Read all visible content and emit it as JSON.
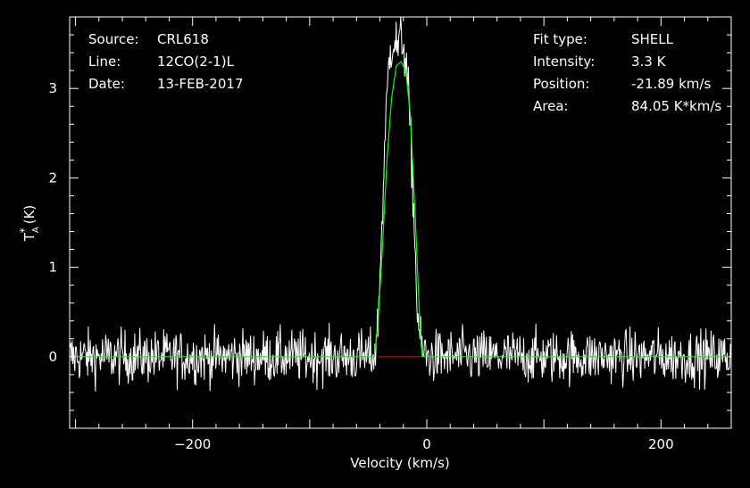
{
  "annotations_left": [
    {
      "key": "Source:",
      "value": "CRL618"
    },
    {
      "key": "Line:",
      "value": "12CO(2-1)L"
    },
    {
      "key": "Date:",
      "value": "13-FEB-2017"
    }
  ],
  "annotations_right": [
    {
      "key": "Fit type:",
      "value": "SHELL"
    },
    {
      "key": "Intensity:",
      "value": "3.3 K"
    },
    {
      "key": "Position:",
      "value": "-21.89 km/s"
    },
    {
      "key": "Area:",
      "value": "84.05 K*km/s"
    }
  ],
  "colors": {
    "background": "#000000",
    "spectrum": "#ffffff",
    "fit": "#00ff00",
    "baseline": "#ff0000"
  },
  "chart_data": {
    "type": "line",
    "xlabel": "Velocity (km/s)",
    "ylabel": "T_A^* (K)",
    "xlim": [
      -305,
      260
    ],
    "ylim": [
      -0.8,
      3.8
    ],
    "xticks": [
      -200,
      0,
      200
    ],
    "xtick_labels": [
      "−200",
      "0",
      "200"
    ],
    "yticks": [
      0,
      1,
      2,
      3
    ],
    "ytick_labels": [
      "0",
      "1",
      "2",
      "3"
    ],
    "grid": false,
    "series": [
      {
        "role": "spectrum",
        "noise_rms": 0.15,
        "x": [
          -300,
          -290,
          -280,
          -270,
          -260,
          -250,
          -240,
          -230,
          -220,
          -210,
          -200,
          -190,
          -180,
          -170,
          -160,
          -150,
          -140,
          -130,
          -120,
          -110,
          -100,
          -90,
          -80,
          -70,
          -60,
          -50,
          -45,
          -42,
          -40,
          -38,
          -36,
          -34,
          -32,
          -30,
          -28,
          -26,
          -24,
          -22,
          -20,
          -18,
          -16,
          -14,
          -12,
          -10,
          -8,
          -5,
          0,
          10,
          20,
          40,
          60,
          80,
          100,
          120,
          140,
          160,
          180,
          200,
          220,
          240,
          258
        ],
        "y": [
          0,
          0,
          0,
          0,
          0,
          0,
          0,
          0,
          0,
          0,
          0,
          0,
          0,
          0,
          0,
          0,
          0,
          0,
          0,
          0,
          0,
          0,
          0,
          0,
          0,
          0,
          0,
          0.3,
          0.9,
          1.6,
          2.3,
          2.9,
          3.35,
          3.5,
          3.55,
          3.5,
          3.45,
          3.6,
          3.5,
          3.3,
          3.0,
          2.5,
          1.9,
          1.2,
          0.5,
          0.1,
          0,
          0,
          0,
          0,
          0,
          0,
          0,
          0,
          0,
          0,
          0,
          0,
          0,
          0,
          0
        ]
      },
      {
        "role": "fit",
        "x": [
          -300,
          -60,
          -50,
          -45,
          -42,
          -38,
          -34,
          -30,
          -26,
          -22,
          -18,
          -14,
          -10,
          -6,
          -4,
          0,
          258
        ],
        "y": [
          0,
          0,
          0,
          0,
          0.3,
          1.2,
          2.2,
          2.9,
          3.25,
          3.3,
          3.2,
          2.7,
          1.6,
          0.4,
          0,
          0,
          0
        ]
      }
    ],
    "baseline_segment": {
      "x": [
        -42,
        -4
      ],
      "y": 0
    }
  }
}
